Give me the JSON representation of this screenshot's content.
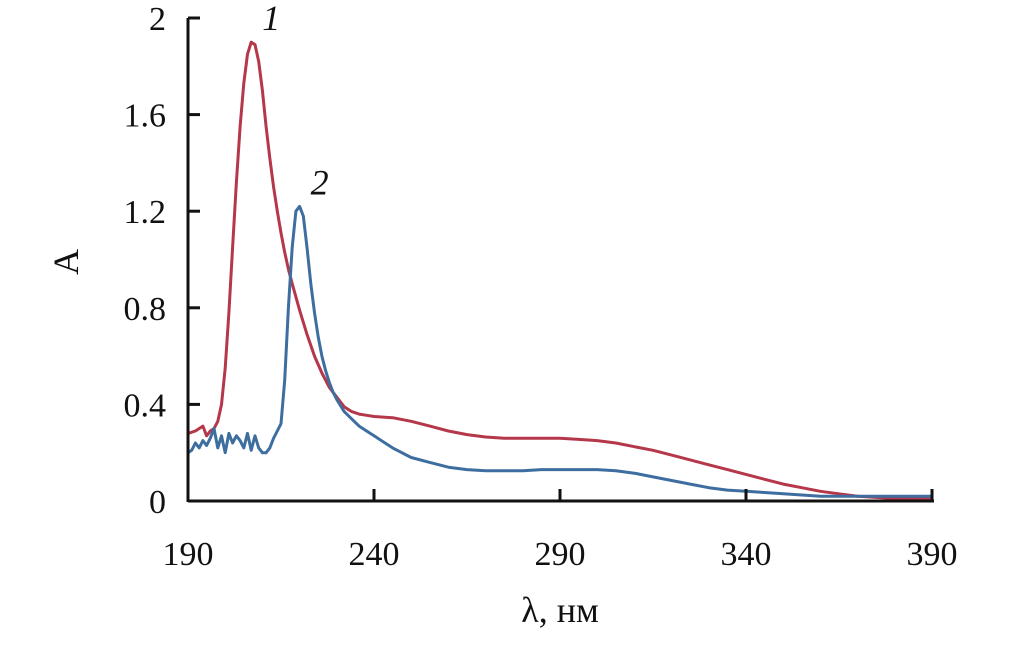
{
  "chart_data": {
    "type": "line",
    "title": "",
    "xlabel": "λ, нм",
    "ylabel": "A",
    "xlim": [
      190,
      390
    ],
    "ylim": [
      0,
      2
    ],
    "xticks": [
      190,
      240,
      290,
      340,
      390
    ],
    "yticks": [
      0,
      0.4,
      0.8,
      1.2,
      1.6,
      2
    ],
    "ytick_labels": [
      "0",
      "0.4",
      "0.8",
      "1.2",
      "1.6",
      "2"
    ],
    "grid": false,
    "legend": "none",
    "series": [
      {
        "label": "1",
        "color": "#b5374a",
        "x": [
          190,
          192,
          194,
          195,
          196,
          197,
          198,
          199,
          200,
          201,
          202,
          203,
          204,
          205,
          206,
          207,
          208,
          209,
          210,
          211,
          212,
          213,
          214,
          215,
          216,
          217,
          218,
          220,
          222,
          224,
          226,
          228,
          230,
          232,
          234,
          236,
          238,
          240,
          245,
          250,
          255,
          260,
          265,
          270,
          275,
          280,
          285,
          290,
          295,
          300,
          305,
          310,
          315,
          320,
          325,
          330,
          335,
          340,
          345,
          350,
          355,
          360,
          365,
          370,
          375,
          380,
          385,
          390
        ],
        "y": [
          0.28,
          0.29,
          0.31,
          0.27,
          0.29,
          0.3,
          0.33,
          0.4,
          0.55,
          0.78,
          1.05,
          1.32,
          1.55,
          1.73,
          1.85,
          1.9,
          1.89,
          1.82,
          1.7,
          1.55,
          1.42,
          1.3,
          1.2,
          1.11,
          1.03,
          0.96,
          0.9,
          0.79,
          0.69,
          0.6,
          0.53,
          0.47,
          0.43,
          0.39,
          0.37,
          0.36,
          0.355,
          0.35,
          0.345,
          0.33,
          0.31,
          0.29,
          0.275,
          0.265,
          0.26,
          0.26,
          0.26,
          0.26,
          0.255,
          0.25,
          0.24,
          0.225,
          0.21,
          0.19,
          0.17,
          0.15,
          0.13,
          0.11,
          0.09,
          0.07,
          0.055,
          0.04,
          0.03,
          0.02,
          0.015,
          0.01,
          0.01,
          0.01
        ]
      },
      {
        "label": "2",
        "color": "#3d6e9f",
        "x": [
          190,
          191,
          192,
          193,
          194,
          195,
          196,
          197,
          198,
          199,
          200,
          201,
          202,
          203,
          204,
          205,
          206,
          207,
          208,
          209,
          210,
          211,
          212,
          213,
          214,
          215,
          216,
          217,
          218,
          219,
          220,
          221,
          222,
          223,
          224,
          225,
          226,
          227,
          228,
          229,
          230,
          232,
          234,
          236,
          238,
          240,
          245,
          250,
          255,
          260,
          265,
          270,
          275,
          280,
          285,
          290,
          295,
          300,
          305,
          310,
          315,
          320,
          325,
          330,
          335,
          340,
          345,
          350,
          355,
          360,
          365,
          370,
          375,
          380,
          385,
          390
        ],
        "y": [
          0.2,
          0.21,
          0.24,
          0.22,
          0.25,
          0.23,
          0.26,
          0.3,
          0.22,
          0.27,
          0.2,
          0.28,
          0.24,
          0.27,
          0.25,
          0.22,
          0.28,
          0.21,
          0.27,
          0.22,
          0.2,
          0.2,
          0.22,
          0.26,
          0.29,
          0.32,
          0.5,
          0.8,
          1.05,
          1.2,
          1.22,
          1.18,
          1.05,
          0.9,
          0.78,
          0.68,
          0.6,
          0.54,
          0.49,
          0.45,
          0.42,
          0.37,
          0.34,
          0.31,
          0.29,
          0.27,
          0.22,
          0.18,
          0.16,
          0.14,
          0.13,
          0.125,
          0.125,
          0.125,
          0.13,
          0.13,
          0.13,
          0.13,
          0.125,
          0.115,
          0.1,
          0.085,
          0.07,
          0.055,
          0.045,
          0.04,
          0.035,
          0.03,
          0.025,
          0.02,
          0.02,
          0.02,
          0.02,
          0.02,
          0.02,
          0.02
        ]
      }
    ]
  }
}
